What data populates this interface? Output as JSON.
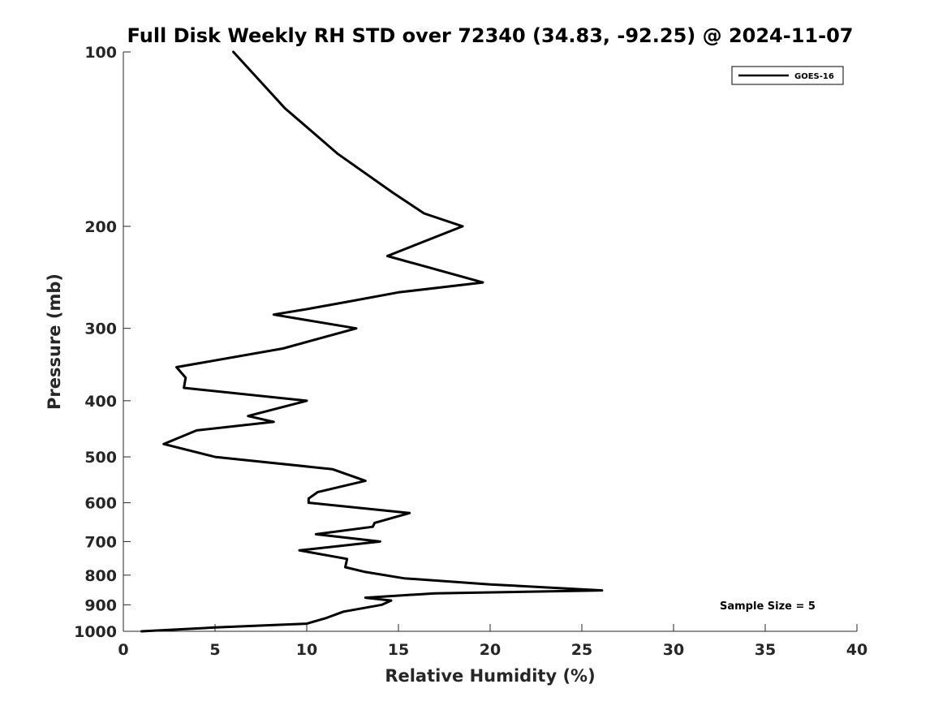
{
  "chart_data": {
    "type": "line",
    "title": "Full Disk Weekly RH STD over 72340 (34.83, -92.25) @ 2024-11-07",
    "xlabel": "Relative Humidity (%)",
    "ylabel": "Pressure (mb)",
    "xlim": [
      0,
      40
    ],
    "ylim": [
      100,
      1000
    ],
    "y_scale": "log",
    "y_reversed": true,
    "xticks": [
      0,
      5,
      10,
      15,
      20,
      25,
      30,
      35,
      40
    ],
    "yticks": [
      100,
      200,
      300,
      400,
      500,
      600,
      700,
      800,
      900,
      1000
    ],
    "grid": false,
    "legend_position": "top-right",
    "annotation": "Sample Size = 5",
    "series": [
      {
        "name": "GOES-16",
        "color": "#000000",
        "points": [
          [
            6.0,
            100
          ],
          [
            8.8,
            125
          ],
          [
            11.7,
            150
          ],
          [
            14.7,
            175
          ],
          [
            16.4,
            190
          ],
          [
            18.5,
            200
          ],
          [
            14.4,
            225
          ],
          [
            19.6,
            250
          ],
          [
            15.0,
            260
          ],
          [
            12.2,
            270
          ],
          [
            10.0,
            278
          ],
          [
            8.2,
            284
          ],
          [
            12.7,
            300
          ],
          [
            8.7,
            325
          ],
          [
            2.9,
            350
          ],
          [
            3.4,
            365
          ],
          [
            3.3,
            380
          ],
          [
            10.0,
            400
          ],
          [
            6.8,
            425
          ],
          [
            8.2,
            435
          ],
          [
            4.0,
            450
          ],
          [
            2.2,
            475
          ],
          [
            5.0,
            500
          ],
          [
            11.4,
            525
          ],
          [
            13.2,
            550
          ],
          [
            10.6,
            575
          ],
          [
            10.1,
            590
          ],
          [
            10.1,
            600
          ],
          [
            15.6,
            625
          ],
          [
            13.7,
            650
          ],
          [
            13.6,
            660
          ],
          [
            10.5,
            680
          ],
          [
            14.0,
            700
          ],
          [
            9.6,
            725
          ],
          [
            12.2,
            750
          ],
          [
            12.1,
            775
          ],
          [
            13.2,
            790
          ],
          [
            15.3,
            810
          ],
          [
            20.0,
            830
          ],
          [
            26.1,
            850
          ],
          [
            17.0,
            860
          ],
          [
            13.2,
            875
          ],
          [
            14.6,
            885
          ],
          [
            14.1,
            900
          ],
          [
            12.0,
            925
          ],
          [
            11.0,
            950
          ],
          [
            10.0,
            970
          ],
          [
            5.0,
            985
          ],
          [
            1.0,
            1000
          ]
        ]
      }
    ]
  }
}
